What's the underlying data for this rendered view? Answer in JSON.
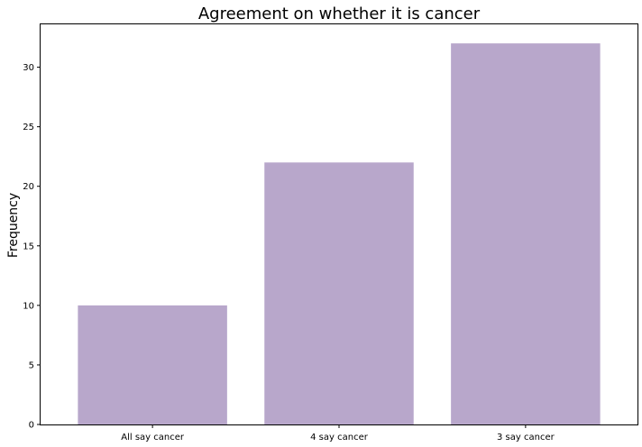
{
  "chart_data": {
    "type": "bar",
    "title": "Agreement on whether it is cancer",
    "xlabel": "",
    "ylabel": "Frequency",
    "categories": [
      "All say cancer",
      "4 say cancer",
      "3 say cancer"
    ],
    "values": [
      10,
      22,
      32
    ],
    "ylim": [
      0,
      33.6
    ],
    "yticks": [
      0,
      5,
      10,
      15,
      20,
      25,
      30
    ],
    "bar_color": "#b8a7cb",
    "grid": false,
    "legend": "none"
  }
}
